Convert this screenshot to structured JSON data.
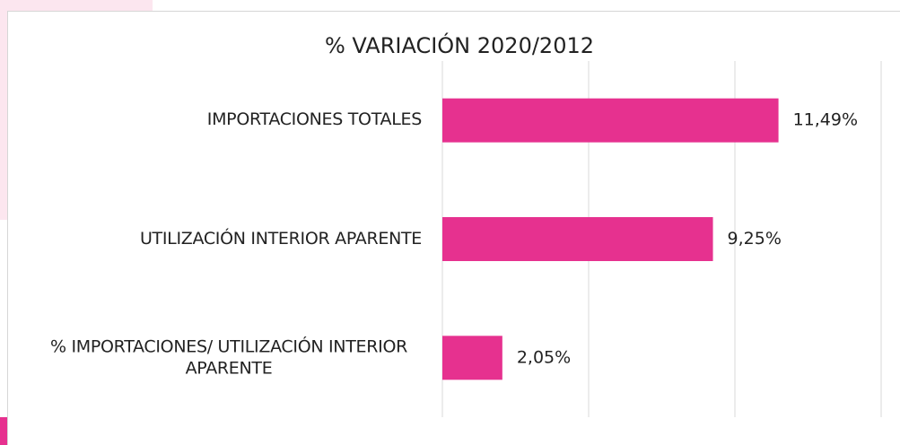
{
  "chart_data": {
    "type": "bar",
    "orientation": "horizontal",
    "title": "% VARIACIÓN 2020/2012",
    "categories": [
      "IMPORTACIONES TOTALES",
      "UTILIZACIÓN INTERIOR APARENTE",
      "% IMPORTACIONES/ UTILIZACIÓN INTERIOR APARENTE"
    ],
    "values": [
      11.49,
      9.25,
      2.05
    ],
    "value_labels": [
      "11,49%",
      "9,25%",
      "2,05%"
    ],
    "color": "#e6318f",
    "xlim": [
      0,
      15
    ],
    "xticks": [
      0,
      5,
      10,
      15
    ],
    "grid": true
  }
}
